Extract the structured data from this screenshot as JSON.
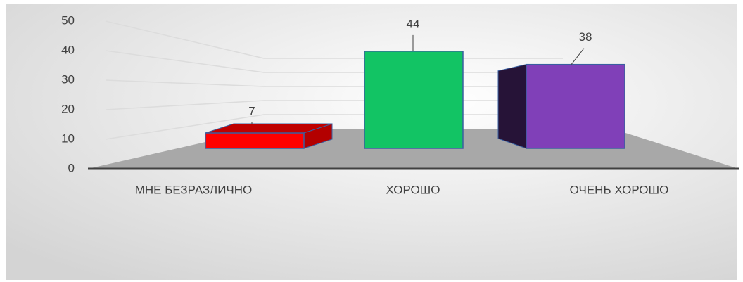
{
  "chart_data": {
    "type": "bar3d",
    "categories": [
      "МНЕ БЕЗРАЗЛИЧНО",
      "ХОРОШО",
      "ОЧЕНЬ ХОРОШО"
    ],
    "values": [
      7,
      44,
      38
    ],
    "colors": [
      "#ff0000",
      "#12c464",
      "#8040b8"
    ],
    "ylim": [
      0,
      50
    ],
    "yticks": [
      0,
      10,
      20,
      30,
      40,
      50
    ],
    "grid": true
  }
}
